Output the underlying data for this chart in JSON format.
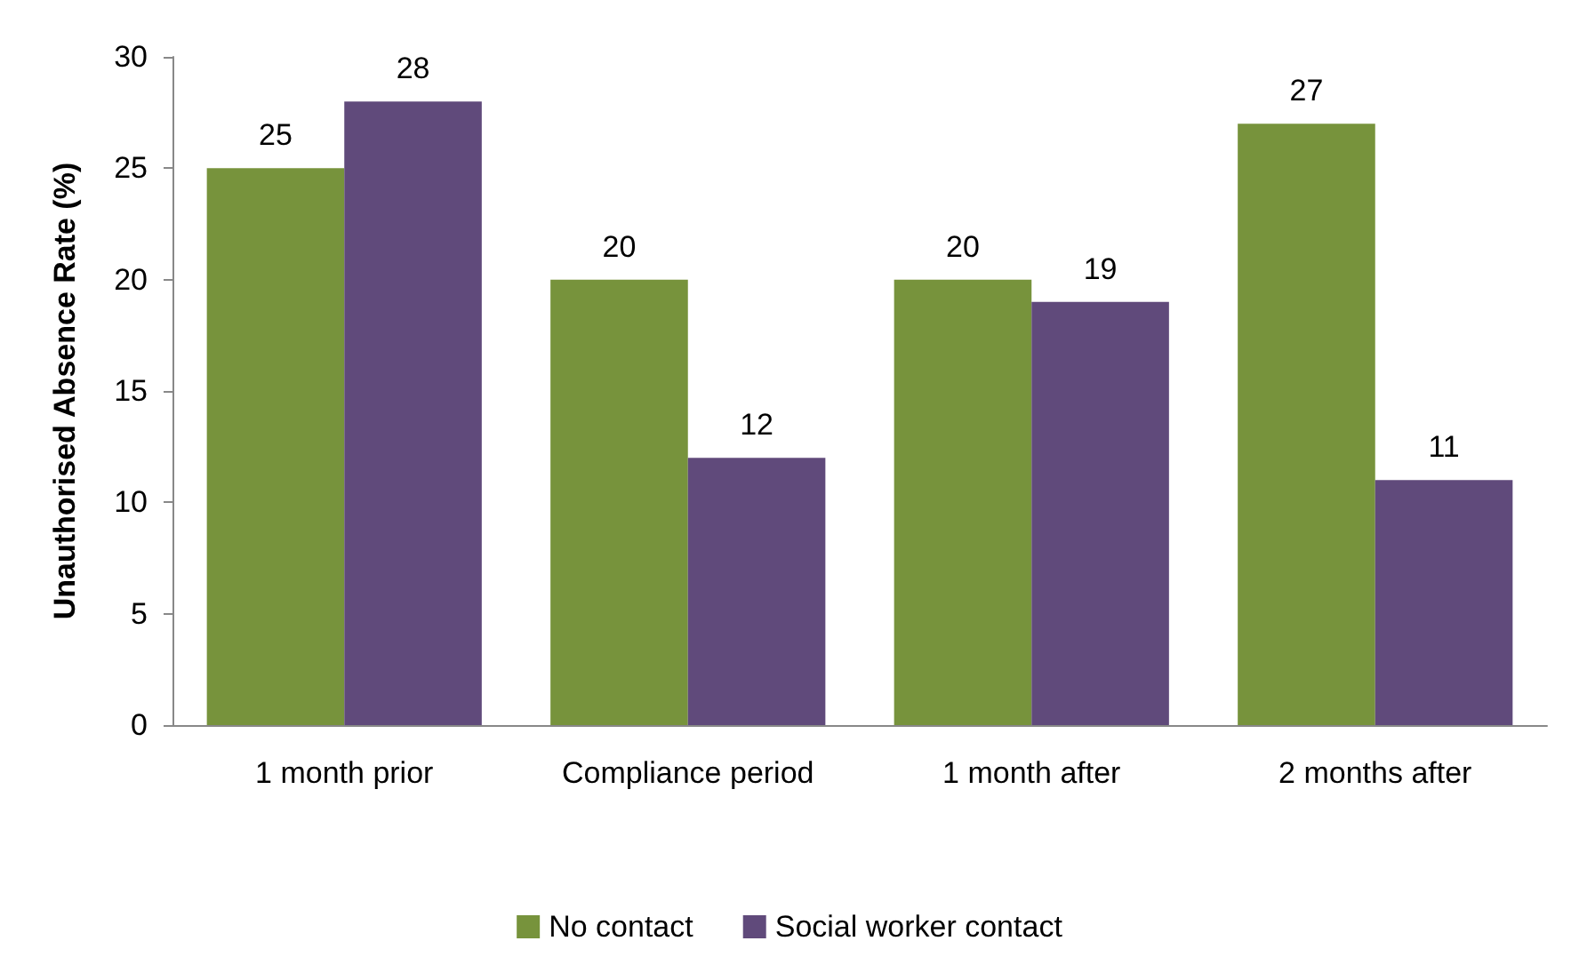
{
  "chart_data": {
    "type": "bar",
    "ylabel": "Unauthorised Absence Rate (%)",
    "categories": [
      "1 month prior",
      "Compliance period",
      "1 month after",
      "2 months after"
    ],
    "series": [
      {
        "name": "No contact",
        "color": "#77933c",
        "values": [
          25,
          20,
          20,
          27
        ]
      },
      {
        "name": "Social worker contact",
        "color": "#604a7b",
        "values": [
          28,
          12,
          19,
          11
        ]
      }
    ],
    "ylim": [
      0,
      30
    ],
    "yticks": [
      0,
      5,
      10,
      15,
      20,
      25,
      30
    ],
    "data_labels": true,
    "grid": false,
    "legend": "bottom"
  }
}
